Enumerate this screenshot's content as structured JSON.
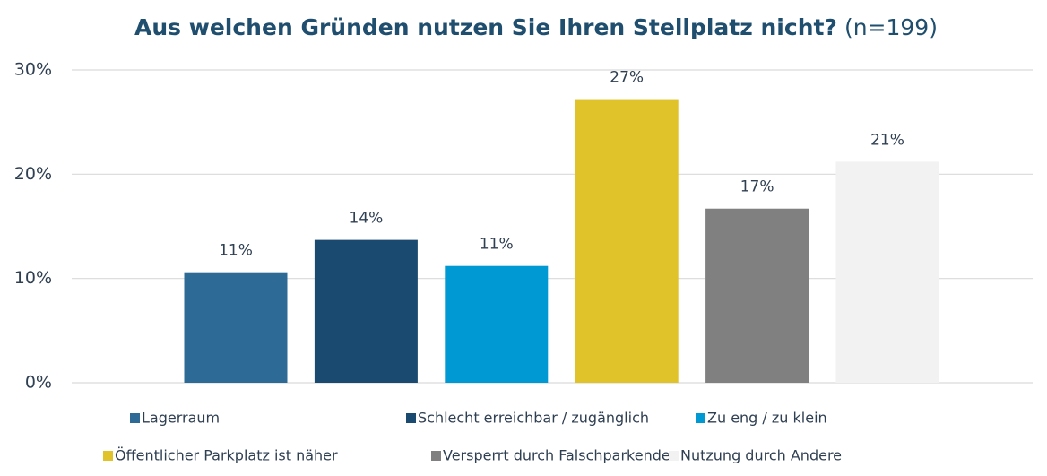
{
  "chart_data": {
    "type": "bar",
    "title": "Aus welchen Gründen nutzen Sie Ihren Stellplatz nicht?",
    "subtitle": "(n=199)",
    "series": [
      {
        "name": "Lagerraum",
        "color": "#2e6a96",
        "values": [
          10.6
        ],
        "value_labels": [
          "11%"
        ]
      },
      {
        "name": "Schlecht erreichbar / zugänglich",
        "color": "#1a4a70",
        "values": [
          13.7
        ],
        "value_labels": [
          "14%"
        ]
      },
      {
        "name": "Zu eng / zu klein",
        "color": "#0099d4",
        "values": [
          11.2
        ],
        "value_labels": [
          "11%"
        ]
      },
      {
        "name": "Öffentlicher Parkplatz ist näher",
        "color": "#e0c22a",
        "values": [
          27.2
        ],
        "value_labels": [
          "27%"
        ]
      },
      {
        "name": "Versperrt durch Falschparkende",
        "color": "#808080",
        "values": [
          16.7
        ],
        "value_labels": [
          "17%"
        ]
      },
      {
        "name": "Nutzung durch Andere",
        "color": "#f2f2f2",
        "values": [
          21.2
        ],
        "value_labels": [
          "21%"
        ]
      }
    ],
    "ylim": [
      0,
      30
    ],
    "yticks": [
      {
        "value": 0,
        "label": "0%"
      },
      {
        "value": 10,
        "label": "10%"
      },
      {
        "value": 20,
        "label": "20%"
      },
      {
        "value": 30,
        "label": "30%"
      }
    ],
    "grid": true
  }
}
